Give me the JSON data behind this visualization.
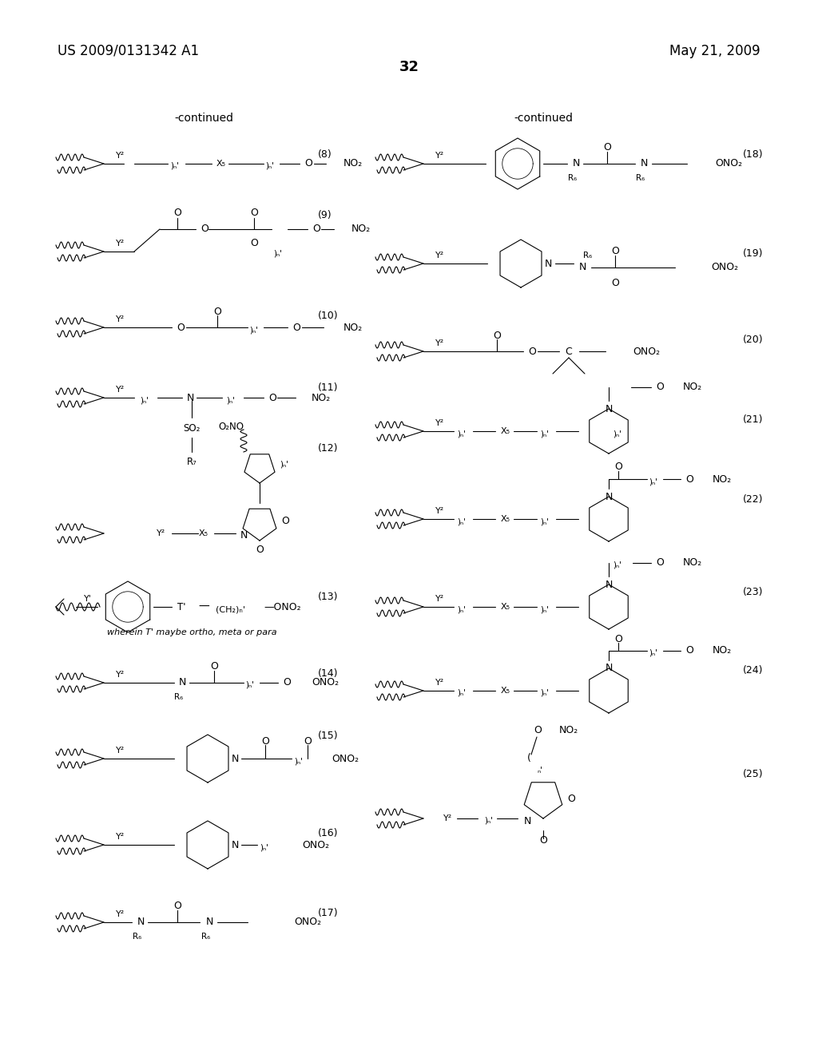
{
  "page_header_left": "US 2009/0131342 A1",
  "page_header_right": "May 21, 2009",
  "page_number": "32",
  "continued_left": "-continued",
  "continued_right": "-continued",
  "background_color": "#ffffff",
  "text_color": "#000000",
  "lw": 0.8
}
